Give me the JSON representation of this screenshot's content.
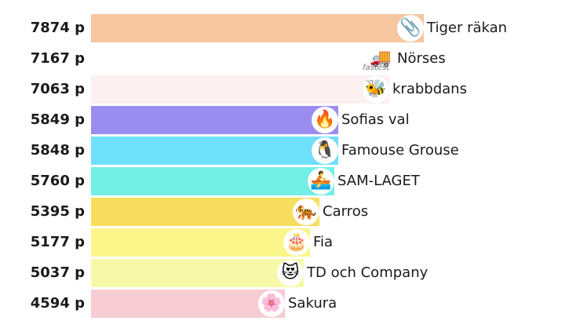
{
  "leaderboard": {
    "max_score": 7874,
    "rows": [
      {
        "score_label": "7874 p",
        "score": 7874,
        "team": "Tiger räkan",
        "icon": "paperclip-icon",
        "glyph": "📎",
        "color": "#f5c6a0",
        "badge": ""
      },
      {
        "score_label": "7167 p",
        "score": 7167,
        "team": "Nörses",
        "icon": "delivery-truck-icon",
        "glyph": "🚚",
        "color": "#ffffff",
        "badge": "fastest"
      },
      {
        "score_label": "7063 p",
        "score": 7063,
        "team": "krabbdans",
        "icon": "bee-icon",
        "glyph": "🐝",
        "color": "#fcf1f0",
        "badge": ""
      },
      {
        "score_label": "5849 p",
        "score": 5849,
        "team": "Sofias val",
        "icon": "fire-icon",
        "glyph": "🔥",
        "color": "#9b8cf0",
        "badge": ""
      },
      {
        "score_label": "5848 p",
        "score": 5848,
        "team": "Famouse Grouse",
        "icon": "penguin-icon",
        "glyph": "🐧",
        "color": "#6ee0fa",
        "badge": ""
      },
      {
        "score_label": "5760 p",
        "score": 5760,
        "team": "SAM-LAGET",
        "icon": "rowing-boat-icon",
        "glyph": "🚣",
        "color": "#72f0e6",
        "badge": ""
      },
      {
        "score_label": "5395 p",
        "score": 5395,
        "team": "Carros",
        "icon": "tiger-icon",
        "glyph": "🐅",
        "color": "#f8de5e",
        "badge": ""
      },
      {
        "score_label": "5177 p",
        "score": 5177,
        "team": "Fia",
        "icon": "birthday-cake-icon",
        "glyph": "🎂",
        "color": "#fbf68a",
        "badge": ""
      },
      {
        "score_label": "5037 p",
        "score": 5037,
        "team": "TD och Company",
        "icon": "heart-eyes-cat-icon",
        "glyph": "😻",
        "color": "#f6f9a8",
        "badge": ""
      },
      {
        "score_label": "4594 p",
        "score": 4594,
        "team": "Sakura",
        "icon": "cherry-blossom-icon",
        "glyph": "🌸",
        "color": "#f7ccd3",
        "badge": ""
      }
    ]
  }
}
